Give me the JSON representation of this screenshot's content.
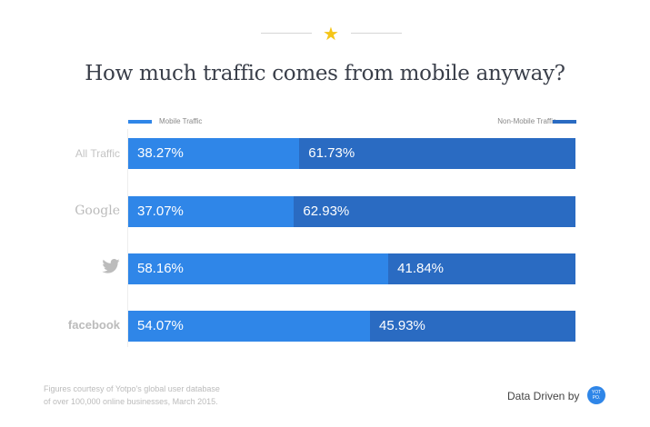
{
  "header": {
    "title": "How much traffic comes from mobile anyway?",
    "icon": "star-icon"
  },
  "chart_data": {
    "type": "bar",
    "stacked": true,
    "orientation": "horizontal",
    "categories": [
      "All Traffic",
      "Google",
      "Twitter",
      "facebook"
    ],
    "series": [
      {
        "name": "Mobile Traffic",
        "values": [
          38.27,
          37.07,
          58.16,
          54.07
        ],
        "color": "#2f86e8"
      },
      {
        "name": "Non-Mobile Traffic",
        "values": [
          61.73,
          62.93,
          41.84,
          45.93
        ],
        "color": "#2a6bc2"
      }
    ],
    "data_labels": [
      [
        "38.27%",
        "37.07%",
        "58.16%",
        "54.07%"
      ],
      [
        "61.73%",
        "62.93%",
        "41.84%",
        "45.93%"
      ]
    ],
    "xlim": [
      0,
      100
    ],
    "legend": "top",
    "grid": false
  },
  "labels": {
    "all": "All Traffic",
    "google": "Google",
    "twitter_icon": "twitter-bird-icon",
    "facebook": "facebook"
  },
  "footer": {
    "note1": "Figures courtesy of Yotpo's global user database",
    "note2": "of over 100,000 online businesses, March 2015.",
    "credit": "Data Driven by",
    "logo": "YOT PO."
  }
}
